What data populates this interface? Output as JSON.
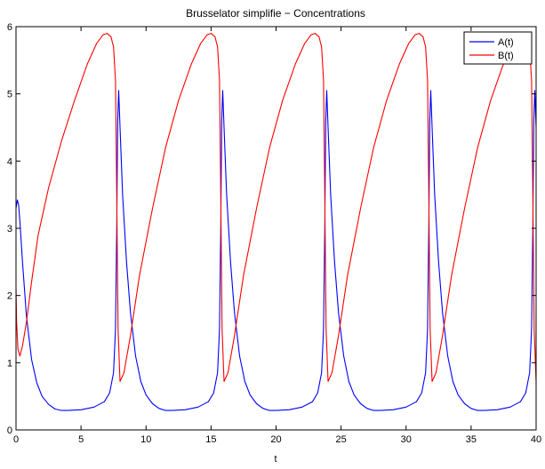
{
  "chart_data": {
    "type": "line",
    "title": "Brusselator simplifie − Concentrations",
    "xlabel": "t",
    "ylabel": "",
    "xlim": [
      0,
      40
    ],
    "ylim": [
      0,
      6
    ],
    "xticks": [
      0,
      5,
      10,
      15,
      20,
      25,
      30,
      35,
      40
    ],
    "yticks": [
      0,
      1,
      2,
      3,
      4,
      5,
      6
    ],
    "grid": false,
    "legend_position": "top-right",
    "series": [
      {
        "name": "A(t)",
        "color": "#0000ff",
        "x": [
          0,
          0.1,
          0.2,
          0.3,
          0.5,
          0.8,
          1.2,
          1.6,
          2.0,
          2.5,
          3.0,
          3.5,
          4.0,
          5.0,
          6.0,
          6.8,
          7.2,
          7.5,
          7.65,
          7.75,
          7.82,
          7.9,
          8.0,
          8.2,
          8.5,
          8.8,
          9.2,
          9.6,
          10.0,
          10.5,
          11.0,
          11.5,
          12.0,
          13.0,
          14.0,
          14.8,
          15.2,
          15.5,
          15.65,
          15.75,
          15.82,
          15.9,
          16.0,
          16.2,
          16.5,
          16.8,
          17.2,
          17.6,
          18.0,
          18.5,
          19.0,
          19.5,
          20.0,
          21.0,
          22.0,
          22.8,
          23.2,
          23.5,
          23.65,
          23.75,
          23.82,
          23.9,
          24.0,
          24.2,
          24.5,
          24.8,
          25.2,
          25.6,
          26.0,
          26.5,
          27.0,
          27.5,
          28.0,
          29.0,
          30.0,
          30.8,
          31.2,
          31.5,
          31.65,
          31.75,
          31.82,
          31.9,
          32.0,
          32.2,
          32.5,
          32.8,
          33.2,
          33.6,
          34.0,
          34.5,
          35.0,
          35.5,
          36.0,
          37.0,
          38.0,
          38.8,
          39.2,
          39.5,
          39.65,
          39.75,
          39.82,
          39.9,
          40.0
        ],
        "y": [
          3.3,
          3.42,
          3.35,
          3.1,
          2.5,
          1.7,
          1.05,
          0.7,
          0.5,
          0.38,
          0.31,
          0.29,
          0.29,
          0.3,
          0.34,
          0.42,
          0.55,
          0.85,
          1.5,
          3.0,
          4.6,
          5.05,
          4.5,
          3.5,
          2.5,
          1.75,
          1.1,
          0.72,
          0.52,
          0.39,
          0.32,
          0.29,
          0.29,
          0.3,
          0.34,
          0.42,
          0.55,
          0.85,
          1.5,
          3.0,
          4.6,
          5.05,
          4.5,
          3.5,
          2.5,
          1.75,
          1.1,
          0.72,
          0.52,
          0.39,
          0.32,
          0.29,
          0.29,
          0.3,
          0.34,
          0.42,
          0.55,
          0.85,
          1.5,
          3.0,
          4.6,
          5.05,
          4.5,
          3.5,
          2.5,
          1.75,
          1.1,
          0.72,
          0.52,
          0.39,
          0.32,
          0.29,
          0.29,
          0.3,
          0.34,
          0.42,
          0.55,
          0.85,
          1.5,
          3.0,
          4.6,
          5.05,
          4.5,
          3.5,
          2.5,
          1.75,
          1.1,
          0.72,
          0.52,
          0.39,
          0.32,
          0.29,
          0.29,
          0.3,
          0.34,
          0.42,
          0.55,
          0.85,
          1.5,
          3.0,
          4.6,
          5.05,
          4.5
        ]
      },
      {
        "name": "B(t)",
        "color": "#ff0000",
        "x": [
          0,
          0.05,
          0.15,
          0.3,
          0.5,
          0.8,
          1.2,
          1.7,
          2.5,
          3.5,
          4.5,
          5.5,
          6.2,
          6.7,
          7.0,
          7.3,
          7.5,
          7.65,
          7.75,
          7.85,
          8.0,
          8.3,
          8.8,
          9.5,
          10.5,
          11.5,
          12.5,
          13.5,
          14.2,
          14.7,
          15.0,
          15.3,
          15.5,
          15.65,
          15.75,
          15.85,
          16.0,
          16.3,
          16.8,
          17.5,
          18.5,
          19.5,
          20.5,
          21.5,
          22.2,
          22.7,
          23.0,
          23.3,
          23.5,
          23.65,
          23.75,
          23.85,
          24.0,
          24.3,
          24.8,
          25.5,
          26.5,
          27.5,
          28.5,
          29.5,
          30.2,
          30.7,
          31.0,
          31.3,
          31.5,
          31.65,
          31.75,
          31.85,
          32.0,
          32.3,
          32.8,
          33.5,
          34.5,
          35.5,
          36.5,
          37.5,
          38.2,
          38.7,
          39.0,
          39.3,
          39.5,
          39.65,
          39.75,
          39.85,
          40.0
        ],
        "y": [
          2.1,
          1.6,
          1.2,
          1.1,
          1.25,
          1.6,
          2.2,
          2.9,
          3.6,
          4.3,
          4.9,
          5.45,
          5.75,
          5.88,
          5.9,
          5.85,
          5.7,
          5.2,
          3.5,
          1.5,
          0.72,
          0.85,
          1.4,
          2.3,
          3.3,
          4.2,
          4.9,
          5.45,
          5.75,
          5.88,
          5.9,
          5.85,
          5.7,
          5.2,
          3.5,
          1.5,
          0.72,
          0.85,
          1.4,
          2.3,
          3.3,
          4.2,
          4.9,
          5.45,
          5.75,
          5.88,
          5.9,
          5.85,
          5.7,
          5.2,
          3.5,
          1.5,
          0.72,
          0.85,
          1.4,
          2.3,
          3.3,
          4.2,
          4.9,
          5.45,
          5.75,
          5.88,
          5.9,
          5.85,
          5.7,
          5.2,
          3.5,
          1.5,
          0.72,
          0.85,
          1.4,
          2.3,
          3.3,
          4.2,
          4.9,
          5.45,
          5.75,
          5.88,
          5.9,
          5.85,
          5.7,
          5.2,
          3.5,
          1.5,
          0.72
        ]
      }
    ]
  }
}
